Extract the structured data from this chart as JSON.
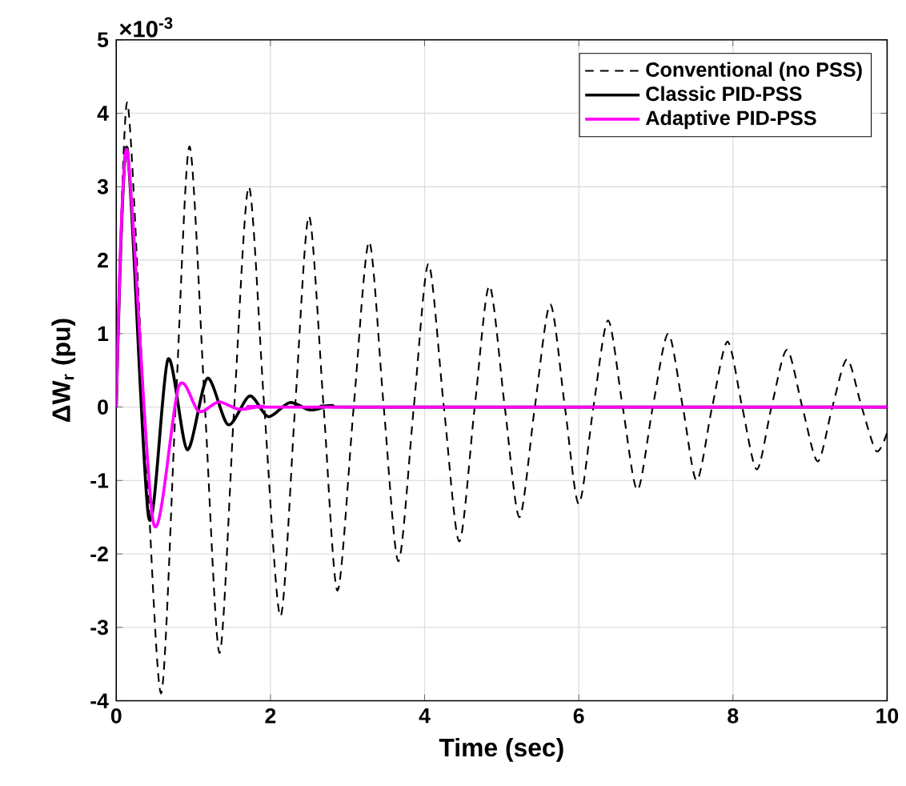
{
  "chart_data": {
    "type": "line",
    "xlabel": "Time (sec)",
    "ylabel": "ΔW$_{r}$ (pu)",
    "annotations": [
      "×10$^{-3}$"
    ],
    "xlim": [
      0,
      10
    ],
    "ylim": [
      -4,
      5
    ],
    "xticks": [
      0,
      2,
      4,
      6,
      8,
      10
    ],
    "yticks": [
      -4,
      -3,
      -2,
      -1,
      0,
      1,
      2,
      3,
      4,
      5
    ],
    "grid": true,
    "legend": "top right",
    "series": [
      {
        "name": "Conventional (no PSS)",
        "color": "#000000",
        "line_style": "dashed",
        "x": [
          0,
          0.14,
          0.36,
          0.58,
          0.77,
          0.95,
          1.15,
          1.34,
          1.53,
          1.72,
          1.92,
          2.13,
          2.32,
          2.5,
          2.69,
          2.87,
          3.08,
          3.28,
          3.47,
          3.66,
          3.86,
          4.05,
          4.25,
          4.45,
          4.65,
          4.84,
          5.04,
          5.23,
          5.43,
          5.63,
          5.82,
          6.0,
          6.19,
          6.38,
          6.57,
          6.76,
          6.96,
          7.16,
          7.35,
          7.53,
          7.73,
          7.93,
          8.12,
          8.31,
          8.5,
          8.7,
          8.9,
          9.1,
          9.29,
          9.48,
          9.67,
          9.86,
          10
        ],
        "values": [
          0,
          4.15,
          0,
          -3.9,
          0,
          3.55,
          0,
          -3.35,
          0,
          3.0,
          0,
          -2.85,
          0,
          2.6,
          0,
          -2.5,
          0,
          2.25,
          0,
          -2.1,
          0,
          1.95,
          0,
          -1.83,
          0,
          1.65,
          0,
          -1.5,
          0,
          1.4,
          0,
          -1.32,
          0,
          1.18,
          0,
          -1.13,
          0,
          1.0,
          0,
          -1.0,
          0,
          0.89,
          0,
          -0.85,
          0,
          0.78,
          0,
          -0.74,
          0,
          0.65,
          0,
          -0.6,
          -0.35
        ]
      },
      {
        "name": "Classic PID-PSS",
        "color": "#000000",
        "line_style": "solid",
        "x": [
          0,
          0.14,
          0.42,
          0.67,
          0.92,
          1.18,
          1.45,
          1.73,
          1.97,
          2.25,
          2.52,
          2.8,
          3.2,
          10
        ],
        "values": [
          0,
          3.53,
          -1.5,
          0.65,
          -0.58,
          0.39,
          -0.24,
          0.15,
          -0.13,
          0.06,
          -0.04,
          0.02,
          0,
          0
        ]
      },
      {
        "name": "Adaptive PID-PSS",
        "color": "#ff00ff",
        "line_style": "solid",
        "x": [
          0,
          0.14,
          0.48,
          0.81,
          1.07,
          1.33,
          1.59,
          1.9,
          2.3,
          10
        ],
        "values": [
          0,
          3.5,
          -1.57,
          0.28,
          -0.06,
          0.07,
          -0.03,
          0.01,
          0,
          0
        ]
      }
    ]
  }
}
